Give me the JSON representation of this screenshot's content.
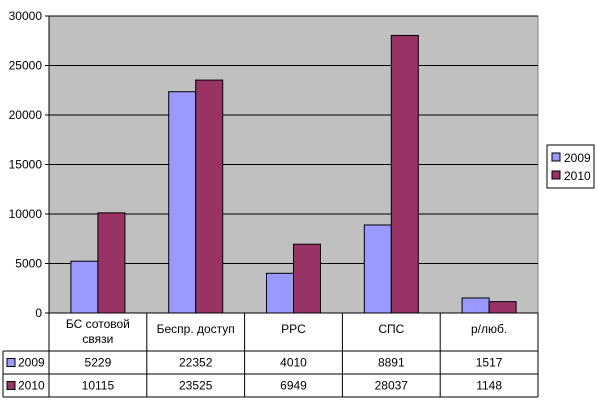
{
  "chart_data": {
    "type": "bar",
    "categories": [
      [
        "БС сотовой",
        "связи"
      ],
      [
        "Беспр. доступ"
      ],
      [
        "PPC"
      ],
      [
        "СПС"
      ],
      [
        "р/люб."
      ]
    ],
    "series": [
      {
        "name": "2009",
        "values": [
          5229,
          22352,
          4010,
          8891,
          1517
        ],
        "color": "#9999ff"
      },
      {
        "name": "2010",
        "values": [
          10115,
          23525,
          6949,
          28037,
          1148
        ],
        "color": "#993366"
      }
    ],
    "ylim": [
      0,
      30000
    ],
    "yticks": [
      0,
      5000,
      10000,
      15000,
      20000,
      25000,
      30000
    ],
    "grid": true,
    "legend": "right",
    "data_table": true,
    "plot_background": "#c0c0c0"
  }
}
